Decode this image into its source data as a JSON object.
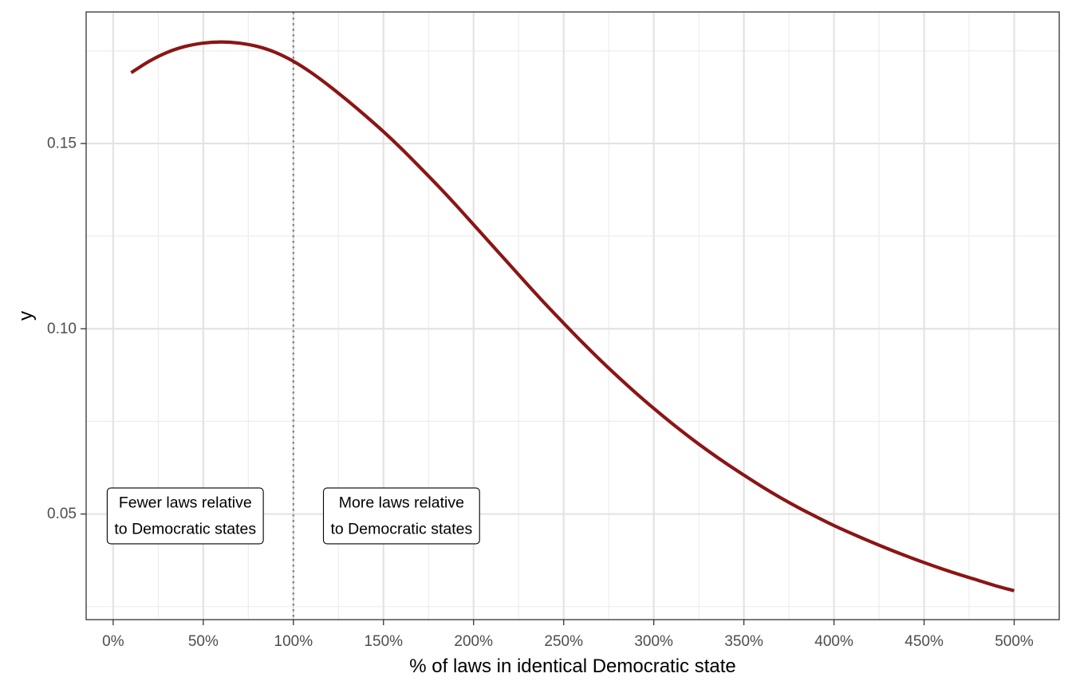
{
  "chart_data": {
    "type": "line",
    "title": "",
    "xlabel": "% of laws in identical Democratic state",
    "ylabel": "y",
    "xlim": [
      -0.15,
      5.25
    ],
    "ylim": [
      0.0215,
      0.1855
    ],
    "x_ticks": [
      0,
      0.5,
      1,
      1.5,
      2,
      2.5,
      3,
      3.5,
      4,
      4.5,
      5
    ],
    "x_tick_labels": [
      "0%",
      "50%",
      "100%",
      "150%",
      "200%",
      "250%",
      "300%",
      "350%",
      "400%",
      "450%",
      "500%"
    ],
    "y_ticks": [
      0.05,
      0.1,
      0.15
    ],
    "y_tick_labels": [
      "0.05",
      "0.10",
      "0.15"
    ],
    "grid": true,
    "reference_line": {
      "x": 1,
      "style": "dotted",
      "color": "#808080"
    },
    "series": [
      {
        "color": "#8b1515",
        "x": [
          0.1,
          0.2,
          0.3,
          0.4,
          0.5,
          0.6,
          0.7,
          0.8,
          0.9,
          1.0,
          1.1,
          1.2,
          1.3,
          1.4,
          1.5,
          1.6,
          1.7,
          1.8,
          1.9,
          2.0,
          2.1,
          2.2,
          2.3,
          2.4,
          2.5,
          2.6,
          2.7,
          2.8,
          2.9,
          3.0,
          3.1,
          3.2,
          3.3,
          3.4,
          3.5,
          3.6,
          3.7,
          3.8,
          3.9,
          4.0,
          4.1,
          4.2,
          4.3,
          4.4,
          4.5,
          4.6,
          4.7,
          4.8,
          4.9,
          5.0
        ],
        "y": [
          0.1691,
          0.1722,
          0.1746,
          0.1762,
          0.1771,
          0.1774,
          0.1771,
          0.1762,
          0.1746,
          0.1722,
          0.1691,
          0.1655,
          0.1616,
          0.1575,
          0.1532,
          0.1486,
          0.1437,
          0.1387,
          0.1335,
          0.1281,
          0.1227,
          0.1173,
          0.1119,
          0.1066,
          0.1015,
          0.0965,
          0.0917,
          0.0871,
          0.0827,
          0.0785,
          0.0745,
          0.0707,
          0.0671,
          0.0637,
          0.0605,
          0.0574,
          0.0545,
          0.0518,
          0.0493,
          0.0469,
          0.0447,
          0.0426,
          0.0406,
          0.0387,
          0.0369,
          0.0352,
          0.0336,
          0.0321,
          0.0306,
          0.0293
        ]
      }
    ],
    "annotations": [
      {
        "x": 0.4,
        "y": 0.0495,
        "lines": [
          "Fewer laws relative",
          "to Democratic states"
        ]
      },
      {
        "x": 1.6,
        "y": 0.0495,
        "lines": [
          "More laws relative",
          "to Democratic states"
        ]
      }
    ]
  }
}
